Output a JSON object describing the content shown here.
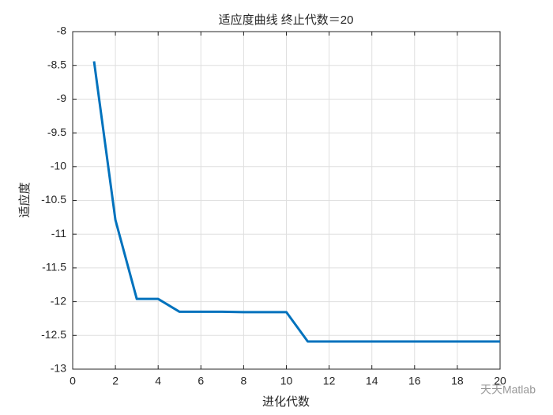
{
  "chart_data": {
    "type": "line",
    "title": "适应度曲线  终止代数＝20",
    "xlabel": "进化代数",
    "ylabel": "适应度",
    "watermark": "天天Matlab",
    "x": [
      1,
      2,
      3,
      4,
      5,
      6,
      7,
      8,
      9,
      10,
      11,
      12,
      13,
      14,
      15,
      16,
      17,
      18,
      19,
      20
    ],
    "series": [
      {
        "color": "#0072bd",
        "values": [
          -8.44,
          -10.79,
          -11.96,
          -11.96,
          -12.15,
          -12.15,
          -12.15,
          -12.155,
          -12.155,
          -12.155,
          -12.59,
          -12.59,
          -12.59,
          -12.59,
          -12.59,
          -12.59,
          -12.59,
          -12.59,
          -12.59,
          -12.59
        ]
      }
    ],
    "xlim": [
      0,
      20
    ],
    "xticks": [
      0,
      2,
      4,
      6,
      8,
      10,
      12,
      14,
      16,
      18,
      20
    ],
    "ylim": [
      -13,
      -8
    ],
    "yticks": [
      -13,
      -12.5,
      -12,
      -11.5,
      -11,
      -10.5,
      -10,
      -9.5,
      -9,
      -8.5,
      -8
    ],
    "grid": true
  }
}
